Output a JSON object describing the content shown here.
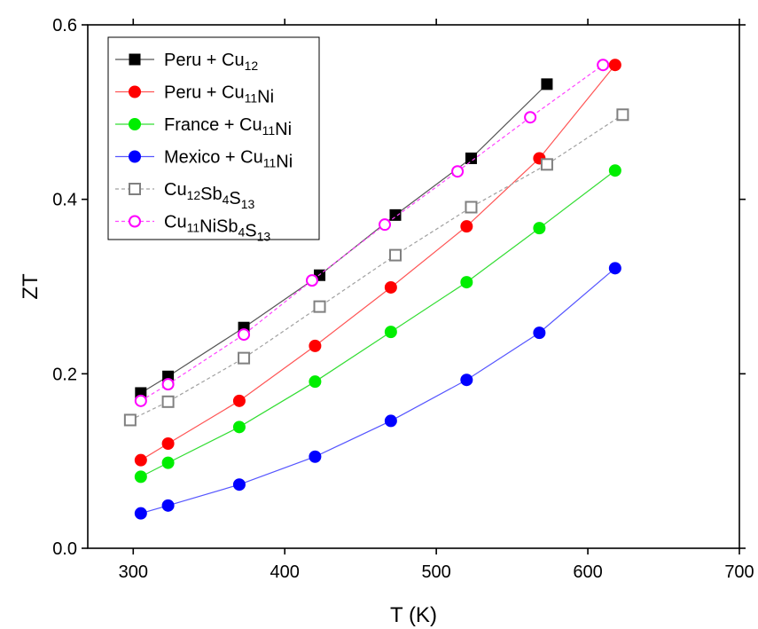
{
  "chart_data": {
    "type": "line",
    "xlabel": "T (K)",
    "ylabel": "ZT",
    "xlim": [
      270,
      700
    ],
    "ylim": [
      0.0,
      0.6
    ],
    "xticks": [
      300,
      400,
      500,
      600,
      700
    ],
    "yticks": [
      0.0,
      0.2,
      0.4,
      0.6
    ],
    "xtick_labels": [
      "300",
      "400",
      "500",
      "600",
      "700"
    ],
    "ytick_labels": [
      "0.0",
      "0.2",
      "0.4",
      "0.6"
    ],
    "grid": false,
    "legend_position": "top-left",
    "series": [
      {
        "name": "Peru + Cu₁₂",
        "label_parts": [
          [
            "Peru + Cu",
            ""
          ],
          [
            "12",
            "sub"
          ]
        ],
        "color": "#000000",
        "line_color": "#555555",
        "marker": "square-filled",
        "dashed": false,
        "x": [
          305,
          323,
          373,
          423,
          473,
          523,
          573
        ],
        "y": [
          0.178,
          0.197,
          0.253,
          0.313,
          0.382,
          0.447,
          0.532
        ]
      },
      {
        "name": "Peru + Cu₁₁Ni",
        "label_parts": [
          [
            "Peru + Cu",
            ""
          ],
          [
            "11",
            "sub"
          ],
          [
            "Ni",
            ""
          ]
        ],
        "color": "#ff0000",
        "line_color": "#ff5555",
        "marker": "circle-filled",
        "dashed": false,
        "x": [
          305,
          323,
          370,
          420,
          470,
          520,
          568,
          618
        ],
        "y": [
          0.101,
          0.12,
          0.169,
          0.232,
          0.299,
          0.369,
          0.447,
          0.554
        ]
      },
      {
        "name": "France + Cu₁₁Ni",
        "label_parts": [
          [
            "France + Cu",
            ""
          ],
          [
            "11",
            "sub"
          ],
          [
            "Ni",
            ""
          ]
        ],
        "color": "#00ee00",
        "line_color": "#33dd33",
        "marker": "circle-filled",
        "dashed": false,
        "x": [
          305,
          323,
          370,
          420,
          470,
          520,
          568,
          618
        ],
        "y": [
          0.082,
          0.098,
          0.139,
          0.191,
          0.248,
          0.305,
          0.367,
          0.433
        ]
      },
      {
        "name": "Mexico + Cu₁₁Ni",
        "label_parts": [
          [
            "Mexico + Cu",
            ""
          ],
          [
            "11",
            "sub"
          ],
          [
            "Ni",
            ""
          ]
        ],
        "color": "#0000ff",
        "line_color": "#5555ff",
        "marker": "circle-filled",
        "dashed": false,
        "x": [
          305,
          323,
          370,
          420,
          470,
          520,
          568,
          618
        ],
        "y": [
          0.04,
          0.049,
          0.073,
          0.105,
          0.146,
          0.193,
          0.247,
          0.321
        ]
      },
      {
        "name": "Cu₁₂Sb₄S₁₃",
        "label_parts": [
          [
            "Cu",
            ""
          ],
          [
            "12",
            "sub"
          ],
          [
            "Sb",
            ""
          ],
          [
            "4",
            "sub"
          ],
          [
            "S",
            ""
          ],
          [
            "13",
            "sub"
          ]
        ],
        "color": "#808080",
        "line_color": "#a0a0a0",
        "marker": "square-open",
        "dashed": true,
        "x": [
          298,
          323,
          373,
          423,
          473,
          523,
          573,
          623
        ],
        "y": [
          0.147,
          0.168,
          0.218,
          0.277,
          0.336,
          0.391,
          0.44,
          0.497
        ]
      },
      {
        "name": "Cu₁₁NiSb₄S₁₃",
        "label_parts": [
          [
            "Cu",
            ""
          ],
          [
            "11",
            "sub"
          ],
          [
            "NiSb",
            ""
          ],
          [
            "4",
            "sub"
          ],
          [
            "S",
            ""
          ],
          [
            "13",
            "sub"
          ]
        ],
        "color": "#ff00ff",
        "line_color": "#ff44ff",
        "marker": "circle-open",
        "dashed": true,
        "x": [
          305,
          323,
          373,
          418,
          466,
          514,
          562,
          610
        ],
        "y": [
          0.169,
          0.188,
          0.245,
          0.307,
          0.371,
          0.432,
          0.494,
          0.554
        ]
      }
    ]
  }
}
